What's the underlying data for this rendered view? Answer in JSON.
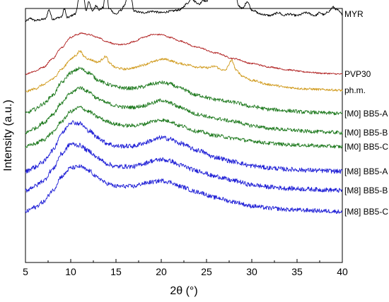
{
  "chart_data": {
    "type": "line",
    "xlabel": "2θ (°)",
    "ylabel": "Intensity (a.u.)",
    "xlim": [
      5,
      40
    ],
    "x_ticks": [
      "5",
      "10",
      "15",
      "20",
      "25",
      "30",
      "35",
      "40"
    ],
    "y_ticks": "none",
    "grid": false,
    "legend": "none; series labels at right end of each curve",
    "series": [
      {
        "name": "MYR",
        "color": "#000000",
        "offset": 330,
        "noise": 1.5,
        "points": [
          [
            5,
            0
          ],
          [
            5.6,
            4
          ],
          [
            6,
            1
          ],
          [
            7.2,
            3
          ],
          [
            7.6,
            16
          ],
          [
            8,
            3
          ],
          [
            9,
            6
          ],
          [
            9.3,
            18
          ],
          [
            9.6,
            5
          ],
          [
            10.5,
            10
          ],
          [
            10.9,
            30
          ],
          [
            11.1,
            52
          ],
          [
            11.4,
            35
          ],
          [
            11.7,
            15
          ],
          [
            12,
            28
          ],
          [
            12.4,
            14
          ],
          [
            12.8,
            22
          ],
          [
            13.2,
            16
          ],
          [
            13.6,
            20
          ],
          [
            13.9,
            60
          ],
          [
            14.2,
            18
          ],
          [
            15,
            10
          ],
          [
            15.6,
            16
          ],
          [
            16,
            24
          ],
          [
            16.3,
            42
          ],
          [
            16.6,
            38
          ],
          [
            17,
            14
          ],
          [
            18,
            12
          ],
          [
            19,
            14
          ],
          [
            20,
            12
          ],
          [
            21,
            14
          ],
          [
            22,
            16
          ],
          [
            23,
            26
          ],
          [
            23.3,
            34
          ],
          [
            23.7,
            28
          ],
          [
            24.2,
            24
          ],
          [
            24.6,
            30
          ],
          [
            25,
            28
          ],
          [
            25.3,
            36
          ],
          [
            25.7,
            40
          ],
          [
            26,
            46
          ],
          [
            26.5,
            38
          ],
          [
            27,
            44
          ],
          [
            27.5,
            55
          ],
          [
            27.8,
            84
          ],
          [
            28.1,
            55
          ],
          [
            28.5,
            22
          ],
          [
            29,
            18
          ],
          [
            29.5,
            28
          ],
          [
            30,
            16
          ],
          [
            31,
            10
          ],
          [
            32,
            8
          ],
          [
            33,
            12
          ],
          [
            33.5,
            8
          ],
          [
            34,
            10
          ],
          [
            35,
            8
          ],
          [
            36,
            12
          ],
          [
            37,
            8
          ],
          [
            37.5,
            12
          ],
          [
            38,
            9
          ],
          [
            38.5,
            14
          ],
          [
            39,
            20
          ],
          [
            39.4,
            16
          ],
          [
            40,
            10
          ]
        ]
      },
      {
        "name": "PVP30",
        "color": "#b02020",
        "offset": 255,
        "noise": 1.0,
        "points": [
          [
            5,
            0
          ],
          [
            6,
            4
          ],
          [
            7,
            10
          ],
          [
            8,
            22
          ],
          [
            9,
            38
          ],
          [
            10,
            52
          ],
          [
            10.7,
            56
          ],
          [
            11.2,
            58
          ],
          [
            12,
            56
          ],
          [
            13,
            52
          ],
          [
            14,
            46
          ],
          [
            15,
            42
          ],
          [
            16,
            42
          ],
          [
            17,
            46
          ],
          [
            18,
            52
          ],
          [
            19,
            56
          ],
          [
            20,
            56
          ],
          [
            21,
            52
          ],
          [
            22,
            47
          ],
          [
            24,
            38
          ],
          [
            26,
            30
          ],
          [
            28,
            22
          ],
          [
            30,
            15
          ],
          [
            32,
            10
          ],
          [
            34,
            6
          ],
          [
            36,
            3
          ],
          [
            38,
            1
          ],
          [
            40,
            0
          ]
        ]
      },
      {
        "name": "ph.m.",
        "color": "#d09a1c",
        "offset": 230,
        "noise": 1.6,
        "points": [
          [
            5,
            0
          ],
          [
            6,
            4
          ],
          [
            7,
            10
          ],
          [
            8,
            18
          ],
          [
            9,
            32
          ],
          [
            10,
            46
          ],
          [
            10.6,
            52
          ],
          [
            11,
            58
          ],
          [
            11.5,
            50
          ],
          [
            12,
            46
          ],
          [
            13,
            42
          ],
          [
            13.9,
            50
          ],
          [
            14.3,
            40
          ],
          [
            15,
            34
          ],
          [
            16,
            32
          ],
          [
            17,
            34
          ],
          [
            18,
            38
          ],
          [
            19,
            42
          ],
          [
            20,
            46
          ],
          [
            20.6,
            46
          ],
          [
            21,
            44
          ],
          [
            22,
            40
          ],
          [
            23,
            38
          ],
          [
            24,
            35
          ],
          [
            25,
            34
          ],
          [
            26,
            36
          ],
          [
            26.5,
            32
          ],
          [
            27,
            30
          ],
          [
            27.8,
            44
          ],
          [
            28.3,
            30
          ],
          [
            29,
            22
          ],
          [
            30,
            16
          ],
          [
            32,
            10
          ],
          [
            34,
            6
          ],
          [
            36,
            4
          ],
          [
            38,
            3
          ],
          [
            40,
            2
          ]
        ]
      },
      {
        "name": "[M0] BB5-A",
        "color": "#1f7a1f",
        "offset": 199,
        "noise": 2.6,
        "points": [
          [
            5,
            0
          ],
          [
            6,
            6
          ],
          [
            7,
            14
          ],
          [
            8,
            26
          ],
          [
            9,
            44
          ],
          [
            10,
            58
          ],
          [
            11,
            64
          ],
          [
            12,
            58
          ],
          [
            13,
            48
          ],
          [
            14,
            42
          ],
          [
            15,
            38
          ],
          [
            16,
            36
          ],
          [
            17,
            36
          ],
          [
            18,
            38
          ],
          [
            19,
            42
          ],
          [
            20,
            44
          ],
          [
            21,
            42
          ],
          [
            22,
            36
          ],
          [
            24,
            26
          ],
          [
            26,
            20
          ],
          [
            28,
            16
          ],
          [
            30,
            10
          ],
          [
            32,
            6
          ],
          [
            34,
            4
          ],
          [
            36,
            2
          ],
          [
            38,
            1
          ],
          [
            40,
            0
          ]
        ]
      },
      {
        "name": "[M0] BB5-B",
        "color": "#1f7a1f",
        "offset": 172,
        "noise": 2.6,
        "points": [
          [
            5,
            0
          ],
          [
            6,
            6
          ],
          [
            7,
            14
          ],
          [
            8,
            26
          ],
          [
            9,
            42
          ],
          [
            10,
            56
          ],
          [
            11,
            64
          ],
          [
            12,
            58
          ],
          [
            13,
            48
          ],
          [
            14,
            42
          ],
          [
            15,
            38
          ],
          [
            16,
            36
          ],
          [
            17,
            36
          ],
          [
            18,
            38
          ],
          [
            19,
            42
          ],
          [
            20,
            46
          ],
          [
            21,
            42
          ],
          [
            22,
            36
          ],
          [
            24,
            26
          ],
          [
            26,
            20
          ],
          [
            28,
            16
          ],
          [
            30,
            10
          ],
          [
            32,
            6
          ],
          [
            34,
            4
          ],
          [
            36,
            2
          ],
          [
            38,
            1
          ],
          [
            40,
            0
          ]
        ]
      },
      {
        "name": "[M0] BB5-C",
        "color": "#1f7a1f",
        "offset": 152,
        "noise": 2.6,
        "points": [
          [
            5,
            0
          ],
          [
            6,
            4
          ],
          [
            7,
            10
          ],
          [
            8,
            20
          ],
          [
            9,
            36
          ],
          [
            10,
            50
          ],
          [
            11,
            56
          ],
          [
            12,
            50
          ],
          [
            13,
            42
          ],
          [
            14,
            36
          ],
          [
            15,
            32
          ],
          [
            16,
            30
          ],
          [
            17,
            30
          ],
          [
            18,
            32
          ],
          [
            19,
            36
          ],
          [
            20,
            38
          ],
          [
            21,
            36
          ],
          [
            22,
            30
          ],
          [
            24,
            22
          ],
          [
            26,
            16
          ],
          [
            28,
            12
          ],
          [
            30,
            8
          ],
          [
            32,
            5
          ],
          [
            34,
            3
          ],
          [
            36,
            2
          ],
          [
            38,
            1
          ],
          [
            40,
            0
          ]
        ]
      },
      {
        "name": "[M8] BB5-A",
        "color": "#1f1fd6",
        "offset": 117,
        "noise": 3.2,
        "points": [
          [
            5,
            0
          ],
          [
            6,
            6
          ],
          [
            7,
            14
          ],
          [
            8,
            30
          ],
          [
            9,
            54
          ],
          [
            10,
            70
          ],
          [
            11,
            68
          ],
          [
            12,
            58
          ],
          [
            13,
            48
          ],
          [
            14,
            40
          ],
          [
            15,
            36
          ],
          [
            16,
            36
          ],
          [
            17,
            36
          ],
          [
            18,
            40
          ],
          [
            19,
            44
          ],
          [
            20,
            48
          ],
          [
            21,
            46
          ],
          [
            22,
            40
          ],
          [
            24,
            30
          ],
          [
            26,
            20
          ],
          [
            28,
            14
          ],
          [
            30,
            8
          ],
          [
            32,
            5
          ],
          [
            34,
            3
          ],
          [
            36,
            2
          ],
          [
            38,
            1
          ],
          [
            40,
            0
          ]
        ]
      },
      {
        "name": "[M8] BB5-B",
        "color": "#1f1fd6",
        "offset": 90,
        "noise": 3.2,
        "points": [
          [
            5,
            0
          ],
          [
            6,
            6
          ],
          [
            7,
            14
          ],
          [
            8,
            30
          ],
          [
            9,
            52
          ],
          [
            10,
            66
          ],
          [
            11,
            64
          ],
          [
            12,
            56
          ],
          [
            13,
            46
          ],
          [
            14,
            38
          ],
          [
            15,
            34
          ],
          [
            16,
            34
          ],
          [
            17,
            34
          ],
          [
            18,
            38
          ],
          [
            19,
            42
          ],
          [
            20,
            44
          ],
          [
            21,
            42
          ],
          [
            22,
            36
          ],
          [
            24,
            28
          ],
          [
            26,
            20
          ],
          [
            28,
            14
          ],
          [
            30,
            8
          ],
          [
            32,
            5
          ],
          [
            34,
            3
          ],
          [
            36,
            2
          ],
          [
            38,
            1
          ],
          [
            40,
            0
          ]
        ]
      },
      {
        "name": "[M8] BB5-C",
        "color": "#1f1fd6",
        "offset": 60,
        "noise": 3.0,
        "points": [
          [
            5,
            0
          ],
          [
            6,
            6
          ],
          [
            7,
            14
          ],
          [
            8,
            30
          ],
          [
            9,
            50
          ],
          [
            10,
            62
          ],
          [
            11,
            64
          ],
          [
            12,
            58
          ],
          [
            13,
            48
          ],
          [
            14,
            40
          ],
          [
            15,
            36
          ],
          [
            16,
            36
          ],
          [
            17,
            36
          ],
          [
            18,
            40
          ],
          [
            19,
            42
          ],
          [
            20,
            44
          ],
          [
            21,
            42
          ],
          [
            22,
            36
          ],
          [
            24,
            28
          ],
          [
            26,
            20
          ],
          [
            28,
            14
          ],
          [
            30,
            8
          ],
          [
            32,
            5
          ],
          [
            34,
            3
          ],
          [
            36,
            2
          ],
          [
            38,
            1
          ],
          [
            40,
            0
          ]
        ]
      }
    ]
  }
}
